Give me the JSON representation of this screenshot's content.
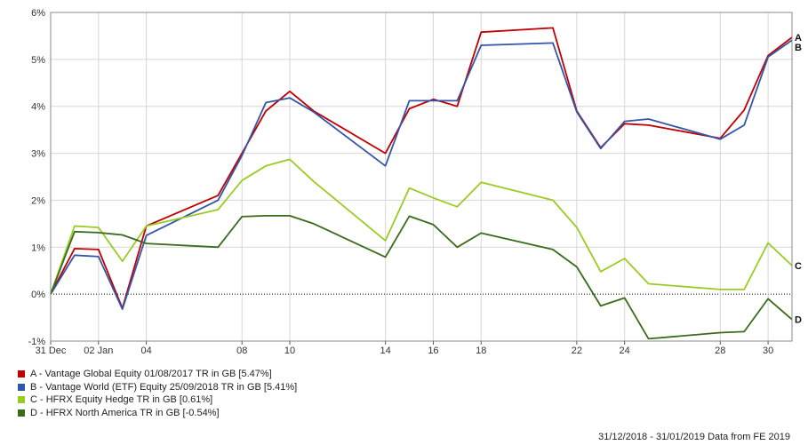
{
  "chart_data": {
    "type": "line",
    "y_unit": "%",
    "ylim": [
      -1,
      6
    ],
    "yticks": [
      -1,
      0,
      1,
      2,
      3,
      4,
      5,
      6
    ],
    "x": [
      "31/12/2018",
      "01/01/2019",
      "02/01/2019",
      "03/01/2019",
      "04/01/2019",
      "07/01/2019",
      "08/01/2019",
      "09/01/2019",
      "10/01/2019",
      "11/01/2019",
      "14/01/2019",
      "15/01/2019",
      "16/01/2019",
      "17/01/2019",
      "18/01/2019",
      "21/01/2019",
      "22/01/2019",
      "23/01/2019",
      "24/01/2019",
      "25/01/2019",
      "28/01/2019",
      "29/01/2019",
      "30/01/2019",
      "31/01/2019"
    ],
    "xtick_labels": [
      {
        "date": "31/12/2018",
        "label": "31 Dec"
      },
      {
        "date": "02/01/2019",
        "label": "02 Jan"
      },
      {
        "date": "04/01/2019",
        "label": "04"
      },
      {
        "date": "08/01/2019",
        "label": "08"
      },
      {
        "date": "10/01/2019",
        "label": "10"
      },
      {
        "date": "14/01/2019",
        "label": "14"
      },
      {
        "date": "16/01/2019",
        "label": "16"
      },
      {
        "date": "18/01/2019",
        "label": "18"
      },
      {
        "date": "22/01/2019",
        "label": "22"
      },
      {
        "date": "24/01/2019",
        "label": "24"
      },
      {
        "date": "28/01/2019",
        "label": "28"
      },
      {
        "date": "30/01/2019",
        "label": "30"
      }
    ],
    "grid": true,
    "zero_line": "dotted",
    "series": [
      {
        "name": "A - Vantage Global Equity 01/08/2017 TR in GB [5.47%]",
        "end_label": "A",
        "color": "#c00000",
        "values": [
          0.0,
          0.97,
          0.95,
          -0.3,
          1.45,
          2.1,
          3.0,
          3.9,
          4.32,
          3.9,
          3.0,
          3.95,
          4.15,
          4.0,
          5.58,
          5.67,
          3.9,
          3.12,
          3.63,
          3.6,
          3.32,
          3.92,
          5.08,
          5.47
        ]
      },
      {
        "name": "B - Vantage World (ETF) Equity 25/09/2018 TR in GB [5.41%]",
        "end_label": "B",
        "color": "#3355aa",
        "values": [
          0.0,
          0.83,
          0.8,
          -0.32,
          1.25,
          2.0,
          2.95,
          4.08,
          4.18,
          3.88,
          2.73,
          4.12,
          4.12,
          4.12,
          5.3,
          5.35,
          3.88,
          3.1,
          3.68,
          3.73,
          3.3,
          3.6,
          5.05,
          5.41
        ]
      },
      {
        "name": "C - HFRX Equity Hedge TR in GB [0.61%]",
        "end_label": "C",
        "color": "#99cc22",
        "values": [
          0.0,
          1.45,
          1.42,
          0.7,
          1.45,
          1.8,
          2.42,
          2.73,
          2.87,
          2.4,
          1.14,
          2.26,
          2.05,
          1.86,
          2.38,
          2.0,
          1.42,
          0.48,
          0.76,
          0.22,
          0.1,
          0.1,
          1.09,
          0.61
        ]
      },
      {
        "name": "D - HFRX North America TR in GB [-0.54%]",
        "end_label": "D",
        "color": "#3a6b1a",
        "values": [
          0.0,
          1.33,
          1.31,
          1.26,
          1.08,
          1.0,
          1.65,
          1.67,
          1.67,
          1.5,
          0.79,
          1.66,
          1.48,
          1.0,
          1.3,
          0.95,
          0.58,
          -0.25,
          -0.08,
          -0.95,
          -0.82,
          -0.8,
          -0.1,
          -0.54
        ]
      }
    ]
  },
  "footer": {
    "text": "31/12/2018 - 31/01/2019 Data from FE 2019"
  }
}
